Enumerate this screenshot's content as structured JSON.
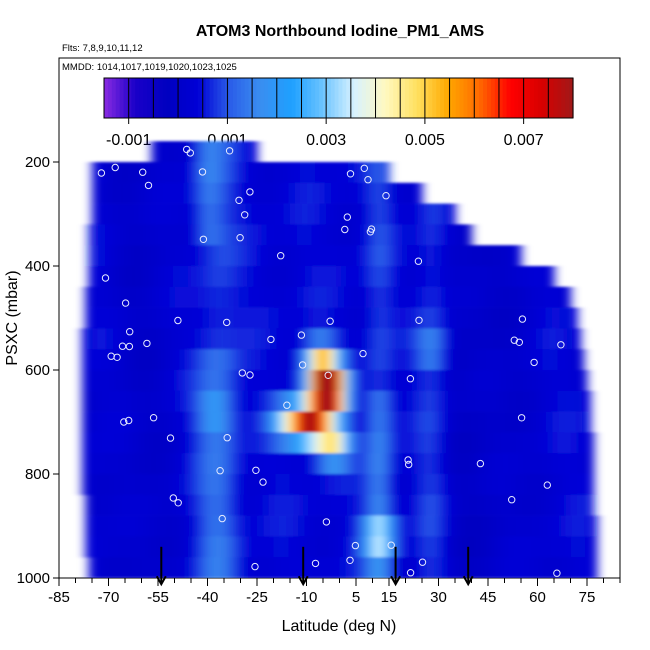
{
  "chart_data": {
    "type": "heatmap",
    "title": "ATOM3 Northbound Iodine_PM1_AMS",
    "flights_note": "Flts: 7,8,9,10,11,12",
    "dates_note": "MMDD: 1014,1017,1019,1020,1023,1025",
    "xlabel": "Latitude (deg N)",
    "ylabel": "PSXC (mbar)",
    "xlim": [
      -85,
      85
    ],
    "ylim": [
      1000,
      0
    ],
    "x_ticks": [
      "-85",
      "-70",
      "-55",
      "-40",
      "-25",
      "-10",
      "5",
      "15",
      "30",
      "45",
      "60",
      "75"
    ],
    "x_tick_values": [
      -85,
      -70,
      -55,
      -40,
      -25,
      -10,
      5,
      15,
      30,
      45,
      60,
      75
    ],
    "y_ticks": [
      "200",
      "400",
      "600",
      "800",
      "1000"
    ],
    "y_tick_values": [
      200,
      400,
      600,
      800,
      1000
    ],
    "colorbar": {
      "range": [
        -0.0015,
        0.008
      ],
      "tick_labels": [
        "-0.001",
        "0.001",
        "0.003",
        "0.005",
        "0.007"
      ],
      "tick_values": [
        -0.001,
        0.001,
        0.003,
        0.005,
        0.007
      ],
      "colors": [
        "#8a2be2",
        "#1a00c8",
        "#0000c0",
        "#0000d6",
        "#2a5ce8",
        "#3a8ef0",
        "#1ea0ff",
        "#6cc4ff",
        "#d8f2ff",
        "#fff8c0",
        "#ffe060",
        "#ffa800",
        "#ff6a00",
        "#ff0000",
        "#d80000",
        "#a01818"
      ]
    },
    "pressure_levels": [
      180,
      220,
      260,
      300,
      340,
      380,
      420,
      460,
      500,
      540,
      580,
      620,
      660,
      700,
      740,
      780,
      820,
      860,
      900,
      940,
      980
    ],
    "lat_extent_by_level": [
      [
        -57,
        -25
      ],
      [
        -75,
        15
      ],
      [
        -75,
        25
      ],
      [
        -75,
        35
      ],
      [
        -76,
        40
      ],
      [
        -76,
        55
      ],
      [
        -76,
        65
      ],
      [
        -77,
        70
      ],
      [
        -77,
        72
      ],
      [
        -78,
        73
      ],
      [
        -78,
        74
      ],
      [
        -78,
        75
      ],
      [
        -78,
        76
      ],
      [
        -78,
        76
      ],
      [
        -78,
        77
      ],
      [
        -78,
        77
      ],
      [
        -78,
        77
      ],
      [
        -77,
        77
      ],
      [
        -77,
        78
      ],
      [
        -77,
        78
      ],
      [
        -76,
        78
      ]
    ],
    "hotspots": [
      {
        "lat": -9,
        "p": 700,
        "value": 0.0075
      },
      {
        "lat": -3,
        "p": 650,
        "value": 0.0065
      },
      {
        "lat": -4,
        "p": 620,
        "value": 0.006
      },
      {
        "lat": -2,
        "p": 740,
        "value": 0.0045
      },
      {
        "lat": -6,
        "p": 580,
        "value": 0.0035
      },
      {
        "lat": -16,
        "p": 700,
        "value": 0.003
      },
      {
        "lat": 12,
        "p": 920,
        "value": 0.0028
      },
      {
        "lat": -38,
        "p": 680,
        "value": 0.0015
      },
      {
        "lat": 28,
        "p": 560,
        "value": 0.0015
      }
    ],
    "markers": {
      "type": "open circles",
      "count": 75
    },
    "arrows_lat": [
      -54,
      -11,
      17,
      39
    ]
  }
}
